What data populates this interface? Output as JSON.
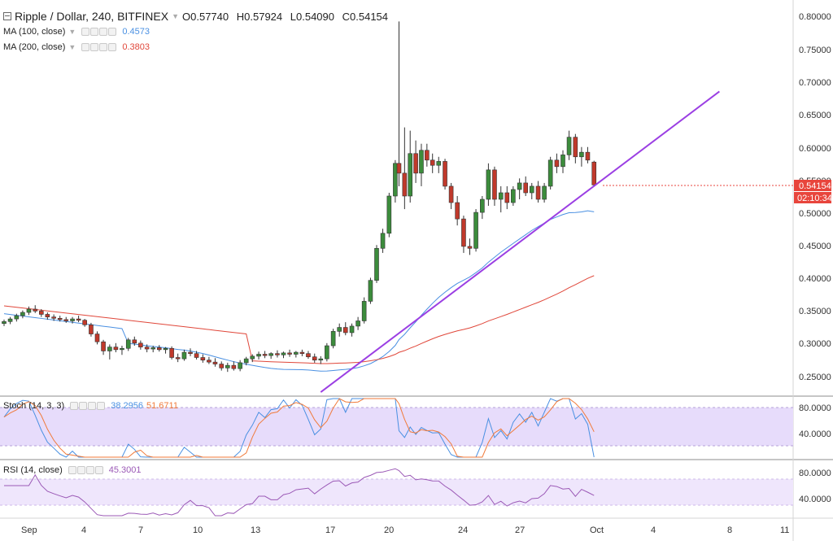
{
  "header": {
    "symbol_title": "Ripple / Dollar, 240, BITFINEX",
    "ohlc": [
      {
        "k": "O",
        "v": "0.57740"
      },
      {
        "k": "H",
        "v": "0.57924"
      },
      {
        "k": "L",
        "v": "0.54090"
      },
      {
        "k": "C",
        "v": "0.54154"
      }
    ]
  },
  "indicators": {
    "ma100": {
      "label": "MA (100, close)",
      "value": "0.4573",
      "color": "#4a90e2"
    },
    "ma200": {
      "label": "MA (200, close)",
      "value": "0.3803",
      "color": "#e0473a"
    },
    "stoch": {
      "label": "Stoch (14, 3, 3)",
      "k_value": "38.2956",
      "d_value": "51.6711",
      "k_color": "#4a90e2",
      "d_color": "#f07a3a"
    },
    "rsi": {
      "label": "RSI (14, close)",
      "value": "45.3001",
      "color": "#9b59b6"
    }
  },
  "price_axis": {
    "ticks": [
      "0.80000",
      "0.75000",
      "0.70000",
      "0.65000",
      "0.60000",
      "0.55000",
      "0.50000",
      "0.45000",
      "0.40000",
      "0.35000",
      "0.30000",
      "0.25000"
    ],
    "last_price": "0.54154",
    "countdown": "02:10:34",
    "last_color": "#e8453c"
  },
  "stoch_axis": {
    "ticks": [
      "80.0000",
      "40.0000"
    ]
  },
  "rsi_axis": {
    "ticks": [
      "80.0000",
      "40.0000"
    ]
  },
  "time_axis": {
    "labels": [
      "Sep",
      "4",
      "7",
      "10",
      "13",
      "17",
      "20",
      "24",
      "27",
      "Oct",
      "4",
      "8",
      "11"
    ]
  },
  "colors": {
    "up": "#3c8c3c",
    "down": "#c0392b",
    "trendline": "#9b3fe3",
    "band": "#e7dcfb"
  },
  "chart_data": {
    "type": "candlestick",
    "title": "Ripple / Dollar, 240, BITFINEX",
    "ylim": [
      0.22,
      0.81
    ],
    "trendline": {
      "start": [
        17.0,
        0.225
      ],
      "end": [
        38.4,
        0.685
      ]
    },
    "candles": [
      {
        "t": 0.0,
        "o": 0.33,
        "h": 0.336,
        "l": 0.326,
        "c": 0.333
      },
      {
        "t": 0.33,
        "o": 0.333,
        "h": 0.34,
        "l": 0.329,
        "c": 0.337
      },
      {
        "t": 0.67,
        "o": 0.337,
        "h": 0.345,
        "l": 0.333,
        "c": 0.342
      },
      {
        "t": 1.0,
        "o": 0.342,
        "h": 0.35,
        "l": 0.338,
        "c": 0.347
      },
      {
        "t": 1.33,
        "o": 0.347,
        "h": 0.356,
        "l": 0.343,
        "c": 0.352
      },
      {
        "t": 1.67,
        "o": 0.352,
        "h": 0.358,
        "l": 0.346,
        "c": 0.349
      },
      {
        "t": 2.0,
        "o": 0.349,
        "h": 0.352,
        "l": 0.34,
        "c": 0.344
      },
      {
        "t": 2.33,
        "o": 0.344,
        "h": 0.347,
        "l": 0.336,
        "c": 0.34
      },
      {
        "t": 2.67,
        "o": 0.34,
        "h": 0.344,
        "l": 0.334,
        "c": 0.338
      },
      {
        "t": 3.0,
        "o": 0.338,
        "h": 0.342,
        "l": 0.333,
        "c": 0.336
      },
      {
        "t": 3.33,
        "o": 0.336,
        "h": 0.34,
        "l": 0.331,
        "c": 0.334
      },
      {
        "t": 3.67,
        "o": 0.334,
        "h": 0.34,
        "l": 0.33,
        "c": 0.337
      },
      {
        "t": 4.0,
        "o": 0.337,
        "h": 0.342,
        "l": 0.332,
        "c": 0.335
      },
      {
        "t": 4.33,
        "o": 0.335,
        "h": 0.337,
        "l": 0.325,
        "c": 0.328
      },
      {
        "t": 4.67,
        "o": 0.328,
        "h": 0.331,
        "l": 0.31,
        "c": 0.314
      },
      {
        "t": 5.0,
        "o": 0.314,
        "h": 0.318,
        "l": 0.298,
        "c": 0.302
      },
      {
        "t": 5.33,
        "o": 0.302,
        "h": 0.305,
        "l": 0.282,
        "c": 0.288
      },
      {
        "t": 5.67,
        "o": 0.288,
        "h": 0.298,
        "l": 0.275,
        "c": 0.294
      },
      {
        "t": 6.0,
        "o": 0.294,
        "h": 0.3,
        "l": 0.286,
        "c": 0.29
      },
      {
        "t": 6.33,
        "o": 0.29,
        "h": 0.296,
        "l": 0.282,
        "c": 0.292
      },
      {
        "t": 6.67,
        "o": 0.292,
        "h": 0.308,
        "l": 0.288,
        "c": 0.305
      },
      {
        "t": 7.0,
        "o": 0.305,
        "h": 0.31,
        "l": 0.296,
        "c": 0.3
      },
      {
        "t": 7.33,
        "o": 0.3,
        "h": 0.304,
        "l": 0.29,
        "c": 0.294
      },
      {
        "t": 7.67,
        "o": 0.294,
        "h": 0.298,
        "l": 0.286,
        "c": 0.291
      },
      {
        "t": 8.0,
        "o": 0.291,
        "h": 0.296,
        "l": 0.286,
        "c": 0.293
      },
      {
        "t": 8.33,
        "o": 0.293,
        "h": 0.297,
        "l": 0.287,
        "c": 0.29
      },
      {
        "t": 8.67,
        "o": 0.29,
        "h": 0.294,
        "l": 0.284,
        "c": 0.292
      },
      {
        "t": 9.0,
        "o": 0.292,
        "h": 0.295,
        "l": 0.275,
        "c": 0.278
      },
      {
        "t": 9.33,
        "o": 0.278,
        "h": 0.284,
        "l": 0.271,
        "c": 0.276
      },
      {
        "t": 9.67,
        "o": 0.276,
        "h": 0.29,
        "l": 0.273,
        "c": 0.286
      },
      {
        "t": 10.0,
        "o": 0.286,
        "h": 0.292,
        "l": 0.28,
        "c": 0.284
      },
      {
        "t": 10.33,
        "o": 0.284,
        "h": 0.288,
        "l": 0.275,
        "c": 0.278
      },
      {
        "t": 10.67,
        "o": 0.278,
        "h": 0.283,
        "l": 0.27,
        "c": 0.274
      },
      {
        "t": 11.0,
        "o": 0.274,
        "h": 0.279,
        "l": 0.268,
        "c": 0.271
      },
      {
        "t": 11.33,
        "o": 0.271,
        "h": 0.277,
        "l": 0.264,
        "c": 0.268
      },
      {
        "t": 11.67,
        "o": 0.268,
        "h": 0.272,
        "l": 0.258,
        "c": 0.262
      },
      {
        "t": 12.0,
        "o": 0.262,
        "h": 0.27,
        "l": 0.256,
        "c": 0.266
      },
      {
        "t": 12.33,
        "o": 0.266,
        "h": 0.272,
        "l": 0.258,
        "c": 0.261
      },
      {
        "t": 12.67,
        "o": 0.261,
        "h": 0.274,
        "l": 0.257,
        "c": 0.27
      },
      {
        "t": 13.0,
        "o": 0.27,
        "h": 0.279,
        "l": 0.266,
        "c": 0.276
      },
      {
        "t": 13.33,
        "o": 0.276,
        "h": 0.283,
        "l": 0.271,
        "c": 0.28
      },
      {
        "t": 13.67,
        "o": 0.28,
        "h": 0.287,
        "l": 0.275,
        "c": 0.283
      },
      {
        "t": 14.0,
        "o": 0.283,
        "h": 0.288,
        "l": 0.277,
        "c": 0.281
      },
      {
        "t": 14.33,
        "o": 0.281,
        "h": 0.286,
        "l": 0.276,
        "c": 0.284
      },
      {
        "t": 14.67,
        "o": 0.284,
        "h": 0.289,
        "l": 0.278,
        "c": 0.282
      },
      {
        "t": 15.0,
        "o": 0.282,
        "h": 0.287,
        "l": 0.277,
        "c": 0.285
      },
      {
        "t": 15.33,
        "o": 0.285,
        "h": 0.29,
        "l": 0.279,
        "c": 0.283
      },
      {
        "t": 15.67,
        "o": 0.283,
        "h": 0.288,
        "l": 0.278,
        "c": 0.286
      },
      {
        "t": 16.0,
        "o": 0.286,
        "h": 0.29,
        "l": 0.28,
        "c": 0.284
      },
      {
        "t": 16.33,
        "o": 0.284,
        "h": 0.288,
        "l": 0.276,
        "c": 0.279
      },
      {
        "t": 16.67,
        "o": 0.279,
        "h": 0.284,
        "l": 0.27,
        "c": 0.274
      },
      {
        "t": 17.0,
        "o": 0.274,
        "h": 0.28,
        "l": 0.268,
        "c": 0.276
      },
      {
        "t": 17.33,
        "o": 0.276,
        "h": 0.3,
        "l": 0.272,
        "c": 0.296
      },
      {
        "t": 17.67,
        "o": 0.296,
        "h": 0.322,
        "l": 0.292,
        "c": 0.318
      },
      {
        "t": 18.0,
        "o": 0.318,
        "h": 0.33,
        "l": 0.31,
        "c": 0.324
      },
      {
        "t": 18.33,
        "o": 0.324,
        "h": 0.332,
        "l": 0.312,
        "c": 0.316
      },
      {
        "t": 18.67,
        "o": 0.316,
        "h": 0.33,
        "l": 0.31,
        "c": 0.326
      },
      {
        "t": 19.0,
        "o": 0.326,
        "h": 0.34,
        "l": 0.32,
        "c": 0.334
      },
      {
        "t": 19.33,
        "o": 0.334,
        "h": 0.37,
        "l": 0.33,
        "c": 0.364
      },
      {
        "t": 19.67,
        "o": 0.364,
        "h": 0.4,
        "l": 0.36,
        "c": 0.396
      },
      {
        "t": 20.0,
        "o": 0.396,
        "h": 0.45,
        "l": 0.392,
        "c": 0.445
      },
      {
        "t": 20.33,
        "o": 0.445,
        "h": 0.475,
        "l": 0.438,
        "c": 0.468
      },
      {
        "t": 20.67,
        "o": 0.468,
        "h": 0.53,
        "l": 0.462,
        "c": 0.525
      },
      {
        "t": 21.0,
        "o": 0.525,
        "h": 0.58,
        "l": 0.515,
        "c": 0.575
      },
      {
        "t": 21.2,
        "o": 0.575,
        "h": 0.792,
        "l": 0.54,
        "c": 0.56
      },
      {
        "t": 21.5,
        "o": 0.56,
        "h": 0.63,
        "l": 0.505,
        "c": 0.525
      },
      {
        "t": 21.8,
        "o": 0.525,
        "h": 0.625,
        "l": 0.515,
        "c": 0.59
      },
      {
        "t": 22.1,
        "o": 0.59,
        "h": 0.61,
        "l": 0.545,
        "c": 0.56
      },
      {
        "t": 22.4,
        "o": 0.56,
        "h": 0.605,
        "l": 0.54,
        "c": 0.595
      },
      {
        "t": 22.7,
        "o": 0.595,
        "h": 0.605,
        "l": 0.57,
        "c": 0.58
      },
      {
        "t": 23.0,
        "o": 0.58,
        "h": 0.59,
        "l": 0.56,
        "c": 0.572
      },
      {
        "t": 23.33,
        "o": 0.572,
        "h": 0.585,
        "l": 0.56,
        "c": 0.578
      },
      {
        "t": 23.67,
        "o": 0.578,
        "h": 0.582,
        "l": 0.535,
        "c": 0.54
      },
      {
        "t": 24.0,
        "o": 0.54,
        "h": 0.545,
        "l": 0.505,
        "c": 0.515
      },
      {
        "t": 24.33,
        "o": 0.515,
        "h": 0.525,
        "l": 0.48,
        "c": 0.49
      },
      {
        "t": 24.67,
        "o": 0.49,
        "h": 0.495,
        "l": 0.438,
        "c": 0.448
      },
      {
        "t": 25.0,
        "o": 0.448,
        "h": 0.46,
        "l": 0.435,
        "c": 0.445
      },
      {
        "t": 25.33,
        "o": 0.445,
        "h": 0.505,
        "l": 0.44,
        "c": 0.5
      },
      {
        "t": 25.67,
        "o": 0.5,
        "h": 0.525,
        "l": 0.49,
        "c": 0.52
      },
      {
        "t": 26.0,
        "o": 0.52,
        "h": 0.575,
        "l": 0.51,
        "c": 0.565
      },
      {
        "t": 26.33,
        "o": 0.565,
        "h": 0.57,
        "l": 0.51,
        "c": 0.52
      },
      {
        "t": 26.67,
        "o": 0.52,
        "h": 0.54,
        "l": 0.5,
        "c": 0.53
      },
      {
        "t": 27.0,
        "o": 0.53,
        "h": 0.54,
        "l": 0.505,
        "c": 0.515
      },
      {
        "t": 27.33,
        "o": 0.515,
        "h": 0.54,
        "l": 0.51,
        "c": 0.535
      },
      {
        "t": 27.67,
        "o": 0.535,
        "h": 0.552,
        "l": 0.52,
        "c": 0.545
      },
      {
        "t": 28.0,
        "o": 0.545,
        "h": 0.555,
        "l": 0.525,
        "c": 0.53
      },
      {
        "t": 28.33,
        "o": 0.53,
        "h": 0.545,
        "l": 0.52,
        "c": 0.54
      },
      {
        "t": 28.67,
        "o": 0.54,
        "h": 0.548,
        "l": 0.515,
        "c": 0.52
      },
      {
        "t": 29.0,
        "o": 0.52,
        "h": 0.545,
        "l": 0.515,
        "c": 0.54
      },
      {
        "t": 29.33,
        "o": 0.54,
        "h": 0.585,
        "l": 0.535,
        "c": 0.58
      },
      {
        "t": 29.67,
        "o": 0.58,
        "h": 0.59,
        "l": 0.56,
        "c": 0.57
      },
      {
        "t": 30.0,
        "o": 0.57,
        "h": 0.595,
        "l": 0.56,
        "c": 0.588
      },
      {
        "t": 30.33,
        "o": 0.588,
        "h": 0.625,
        "l": 0.58,
        "c": 0.615
      },
      {
        "t": 30.67,
        "o": 0.615,
        "h": 0.62,
        "l": 0.575,
        "c": 0.585
      },
      {
        "t": 31.0,
        "o": 0.585,
        "h": 0.6,
        "l": 0.57,
        "c": 0.592
      },
      {
        "t": 31.33,
        "o": 0.592,
        "h": 0.6,
        "l": 0.575,
        "c": 0.58
      },
      {
        "t": 31.67,
        "o": 0.577,
        "h": 0.579,
        "l": 0.541,
        "c": 0.542
      }
    ]
  }
}
